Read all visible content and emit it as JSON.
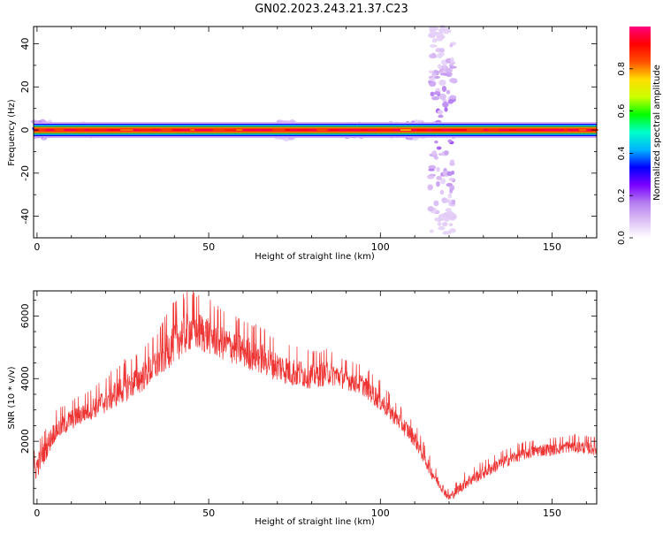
{
  "figure_title": "GN02.2023.243.21.37.C23",
  "chart_data": [
    {
      "type": "heatmap",
      "title": "",
      "xlabel": "Height of straight line (km)",
      "ylabel": "Frequency (Hz)",
      "xlim": [
        -1,
        163
      ],
      "ylim": [
        -50,
        48
      ],
      "x_ticks": [
        0,
        50,
        100,
        150
      ],
      "y_ticks": [
        -40,
        -20,
        0,
        20,
        40
      ],
      "colorbar": {
        "label": "Normalized spectral amplitude",
        "range": [
          0,
          1
        ],
        "ticks": [
          "0.0",
          "0.2",
          "0.4",
          "0.6",
          "0.8"
        ],
        "tick_values": [
          0,
          0.2,
          0.4,
          0.6,
          0.8
        ],
        "colors": [
          "#ffffff",
          "#dcc0f5",
          "#b47cf0",
          "#7a00ff",
          "#0000ff",
          "#00b4ff",
          "#00ffc8",
          "#00ff00",
          "#ccff00",
          "#ffdd00",
          "#ff5000",
          "#ff0000",
          "#ff0080"
        ]
      },
      "band_center_hz": 0,
      "band_halfwidth_hz": 1.5,
      "features": [
        {
          "x": 1.5,
          "half_width_hz": 4,
          "level": 0.45
        },
        {
          "x": 16,
          "half_width_hz": 3,
          "level": 0.3
        },
        {
          "x": 26,
          "half_width_hz": 2,
          "level": 0.25
        },
        {
          "x": 72,
          "half_width_hz": 4,
          "level": 0.3
        },
        {
          "x": 92,
          "half_width_hz": 3,
          "level": 0.5
        },
        {
          "x": 104,
          "half_width_hz": 3,
          "level": 0.35
        },
        {
          "x": 110,
          "half_width_hz": 4,
          "level": 0.4
        },
        {
          "x": 118,
          "half_width_hz": 48,
          "level": 0.2
        }
      ]
    },
    {
      "type": "line",
      "title": "",
      "xlabel": "Height of straight line (km)",
      "ylabel": "SNR (10 * v/v)",
      "xlim": [
        -1,
        163
      ],
      "ylim": [
        0,
        6800
      ],
      "x_ticks": [
        0,
        50,
        100,
        150
      ],
      "y_ticks": [
        2000,
        4000,
        6000
      ],
      "color": "#ee3333",
      "series": [
        {
          "x": [
            -1,
            5,
            10,
            15,
            20,
            25,
            30,
            35,
            40,
            45,
            50,
            55,
            60,
            65,
            70,
            75,
            80,
            85,
            90,
            95,
            100,
            105,
            110,
            115,
            120,
            125,
            130,
            135,
            140,
            145,
            150,
            155,
            160,
            163
          ],
          "y": [
            1000,
            2300,
            2700,
            3000,
            3300,
            3700,
            4000,
            4500,
            5200,
            5600,
            5400,
            5100,
            4900,
            4700,
            4400,
            4200,
            4100,
            4200,
            4000,
            3800,
            3300,
            2700,
            2100,
            1000,
            200,
            700,
            1000,
            1300,
            1550,
            1700,
            1750,
            1850,
            1800,
            1750
          ],
          "noise_amplitude": [
            600,
            500,
            500,
            500,
            600,
            700,
            700,
            800,
            1000,
            1000,
            900,
            800,
            800,
            800,
            700,
            700,
            600,
            600,
            500,
            500,
            500,
            400,
            400,
            300,
            200,
            300,
            300,
            300,
            300,
            300,
            300,
            300,
            300,
            300
          ]
        }
      ]
    }
  ]
}
